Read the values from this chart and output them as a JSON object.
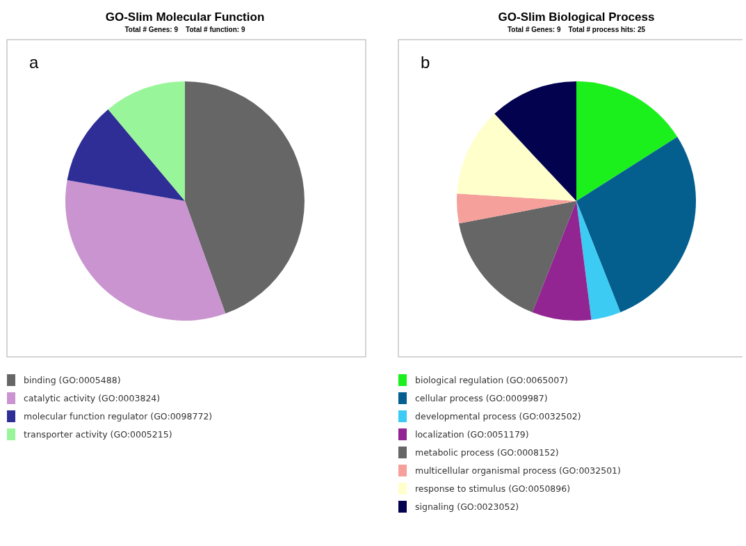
{
  "chart_data": [
    {
      "type": "pie",
      "title": "GO-Slim Molecular Function",
      "subtitle": "Total # Genes: 9    Total # function: 9",
      "annotations": [
        "a"
      ],
      "legend": "bottom",
      "categories": [
        "binding (GO:0005488)",
        "catalytic activity (GO:0003824)",
        "molecular function regulator (GO:0098772)",
        "transporter activity (GO:0005215)"
      ],
      "values": [
        44.5,
        33.3,
        11.1,
        11.1
      ],
      "colors": [
        "#666666",
        "#c994cf",
        "#2e2e96",
        "#99f599"
      ]
    },
    {
      "type": "pie",
      "title": "GO-Slim Biological Process",
      "subtitle": "Total # Genes: 9    Total # process hits: 25",
      "annotations": [
        "b"
      ],
      "legend": "bottom",
      "categories": [
        "biological regulation (GO:0065007)",
        "cellular process (GO:0009987)",
        "developmental process (GO:0032502)",
        "localization (GO:0051179)",
        "metabolic process (GO:0008152)",
        "multicellular organismal process (GO:0032501)",
        "response to stimulus (GO:0050896)",
        "signaling (GO:0023052)"
      ],
      "values": [
        16,
        28,
        4,
        8,
        16,
        4,
        12,
        12
      ],
      "colors": [
        "#1cf01c",
        "#045f8f",
        "#3ccbf2",
        "#922592",
        "#666666",
        "#f5a09a",
        "#ffffcc",
        "#02024f"
      ]
    }
  ]
}
